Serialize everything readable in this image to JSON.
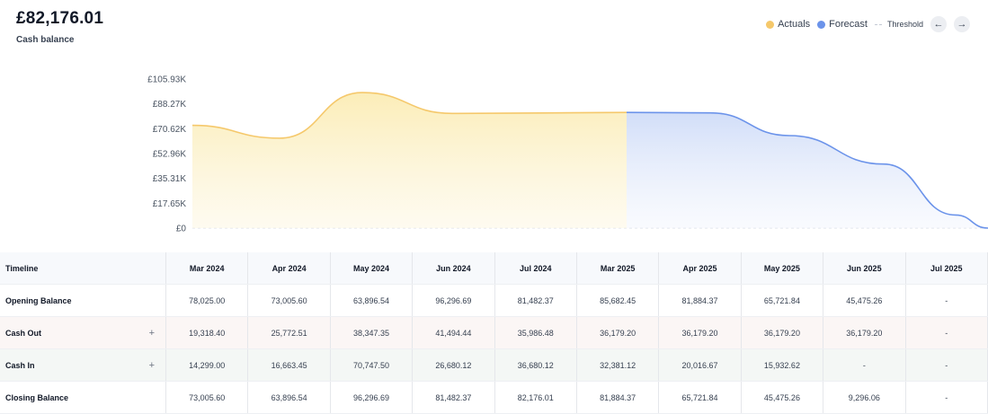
{
  "header": {
    "balance": "£82,176.01",
    "balance_label": "Cash balance"
  },
  "legend": {
    "actuals": "Actuals",
    "forecast": "Forecast",
    "threshold": "Threshold",
    "prev_icon": "arrow-left-icon",
    "next_icon": "arrow-right-icon"
  },
  "colors": {
    "actuals": "#f5c86b",
    "actuals_fill": "#fbf0c3",
    "forecast": "#6b93ea",
    "forecast_fill": "#d9e3fb"
  },
  "chart_data": {
    "type": "area",
    "y_ticks": [
      "£105.93K",
      "£88.27K",
      "£70.62K",
      "£52.96K",
      "£35.31K",
      "£17.65K",
      "£0"
    ],
    "ylim": [
      0,
      105930
    ],
    "grid": false,
    "series": [
      {
        "name": "Actuals",
        "points": [
          {
            "x": "Mar 2024",
            "y": 73005.6
          },
          {
            "x": "Apr 2024",
            "y": 63896.54
          },
          {
            "x": "May 2024",
            "y": 96296.69
          },
          {
            "x": "Jun 2024",
            "y": 81482.37
          },
          {
            "x": "Jul 2024",
            "y": 82176.01
          }
        ]
      },
      {
        "name": "Forecast",
        "points": [
          {
            "x": "Jul 2024",
            "y": 82176.01
          },
          {
            "x": "Mar 2025",
            "y": 81884.37
          },
          {
            "x": "Apr 2025",
            "y": 65721.84
          },
          {
            "x": "May 2025",
            "y": 45475.26
          },
          {
            "x": "Jun 2025",
            "y": 9296.06
          },
          {
            "x": "Jul 2025",
            "y": 0
          }
        ]
      }
    ]
  },
  "table": {
    "header_label": "Timeline",
    "columns": [
      "Mar 2024",
      "Apr 2024",
      "May 2024",
      "Jun 2024",
      "Jul 2024",
      "Mar 2025",
      "Apr 2025",
      "May 2025",
      "Jun 2025",
      "Jul 2025"
    ],
    "rows": [
      {
        "label": "Opening Balance",
        "values": [
          "78,025.00",
          "73,005.60",
          "63,896.54",
          "96,296.69",
          "81,482.37",
          "85,682.45",
          "81,884.37",
          "65,721.84",
          "45,475.26",
          "-"
        ]
      },
      {
        "label": "Cash Out",
        "values": [
          "19,318.40",
          "25,772.51",
          "38,347.35",
          "41,494.44",
          "35,986.48",
          "36,179.20",
          "36,179.20",
          "36,179.20",
          "36,179.20",
          "-"
        ]
      },
      {
        "label": "Cash In",
        "values": [
          "14,299.00",
          "16,663.45",
          "70,747.50",
          "26,680.12",
          "36,680.12",
          "32,381.12",
          "20,016.67",
          "15,932.62",
          "-",
          "-"
        ]
      },
      {
        "label": "Closing Balance",
        "values": [
          "73,005.60",
          "63,896.54",
          "96,296.69",
          "81,482.37",
          "82,176.01",
          "81,884.37",
          "65,721.84",
          "45,475.26",
          "9,296.06",
          "-"
        ]
      }
    ],
    "expand_symbol": "+"
  }
}
